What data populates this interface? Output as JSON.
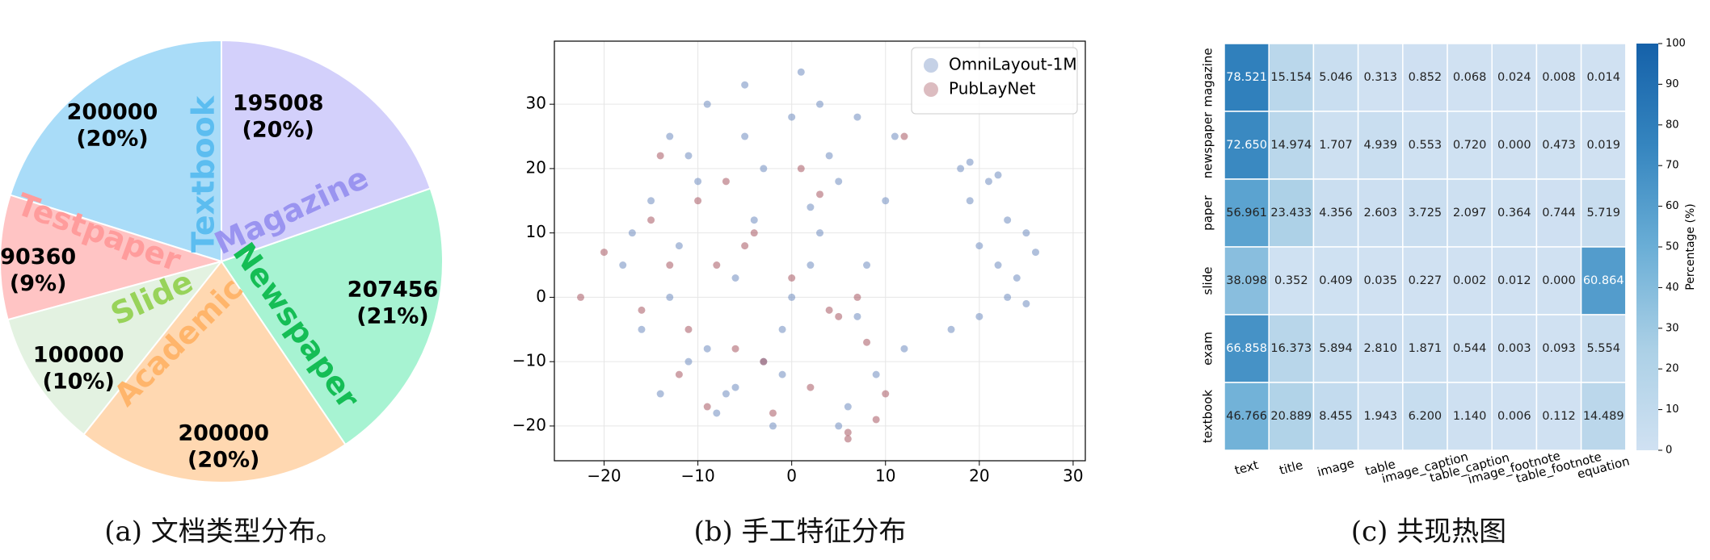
{
  "chart_data": [
    {
      "type": "pie",
      "caption": "(a) 文档类型分布。",
      "categories": [
        "Textbook",
        "Testpaper",
        "Slide",
        "Academic",
        "Newspaper",
        "Magazine"
      ],
      "values": [
        200000,
        90360,
        100000,
        200000,
        207456,
        195008
      ],
      "value_labels": [
        [
          "200000",
          "(20%)"
        ],
        [
          "90360",
          "(9%)"
        ],
        [
          "100000",
          "(10%)"
        ],
        [
          "200000",
          "(20%)"
        ],
        [
          "207456",
          "(21%)"
        ],
        [
          "195008",
          "(20%)"
        ]
      ],
      "colors": [
        "#a9dcf8",
        "#ffc4c4",
        "#e3f2e1",
        "#ffd8b1",
        "#a7f3d2",
        "#d3d0fb"
      ],
      "label_colors": [
        "#5cbdf0",
        "#ff9c9c",
        "#98d35a",
        "#ffb56b",
        "#15bd55",
        "#9a94f0"
      ]
    },
    {
      "type": "scatter",
      "caption": "(b) 手工特征分布",
      "xlim": [
        -25.3,
        31.3
      ],
      "ylim": [
        -25.4,
        39.8
      ],
      "xticks": [
        {
          "value": -20,
          "label": "−20"
        },
        {
          "value": -10,
          "label": "−10"
        },
        0,
        10,
        20,
        30
      ],
      "yticks": [
        {
          "value": -20,
          "label": "−20"
        },
        {
          "value": -10,
          "label": "−10"
        },
        0,
        10,
        20,
        30
      ],
      "grid": true,
      "legend": "upper right",
      "series": [
        {
          "name": "OmniLayout-1M",
          "color": "#6f8dc0",
          "x": [
            -18,
            -15,
            -13,
            -11,
            -9,
            -7,
            -5,
            -3,
            -1,
            1,
            3,
            5,
            7,
            9,
            11,
            -16,
            -12,
            -8,
            -4,
            0,
            4,
            8,
            12,
            -14,
            -10,
            -6,
            -2,
            2,
            6,
            10,
            -17,
            -13,
            -9,
            -5,
            -1,
            3,
            7,
            -11,
            -6,
            0,
            5,
            -3,
            2,
            18,
            19,
            21,
            23,
            20,
            22,
            24,
            25,
            26,
            19,
            22,
            25,
            17,
            20,
            23
          ],
          "values": [
            5,
            15,
            25,
            -10,
            30,
            -15,
            33,
            20,
            -5,
            35,
            10,
            -20,
            28,
            -12,
            25,
            -5,
            8,
            -18,
            12,
            0,
            22,
            5,
            -8,
            -15,
            18,
            3,
            -20,
            14,
            -17,
            15,
            10,
            0,
            -8,
            25,
            -12,
            30,
            -3,
            22,
            -14,
            28,
            18,
            -10,
            5,
            20,
            15,
            18,
            12,
            8,
            5,
            3,
            -1,
            7,
            21,
            19,
            10,
            -5,
            -3,
            0
          ]
        },
        {
          "name": "PubLayNet",
          "color": "#a85862",
          "x": [
            -22.5,
            -20,
            -16,
            -14,
            -12,
            -10,
            -8,
            -6,
            -4,
            -2,
            0,
            2,
            4,
            6,
            8,
            10,
            12,
            -15,
            -11,
            -7,
            -3,
            1,
            5,
            9,
            -13,
            -9,
            -5,
            3,
            7,
            6
          ],
          "values": [
            0,
            7,
            -2,
            22,
            -12,
            15,
            5,
            -8,
            10,
            -18,
            3,
            -14,
            -2,
            -21,
            -7,
            -15,
            25,
            12,
            -5,
            18,
            -10,
            20,
            -3,
            -19,
            5,
            -17,
            8,
            16,
            0,
            -22
          ]
        }
      ]
    },
    {
      "type": "heatmap",
      "caption": "(c) 共现热图",
      "x_categories": [
        "text",
        "title",
        "image",
        "table",
        "image_caption",
        "table_caption",
        "image_footnote",
        "table_footnote",
        "equation"
      ],
      "y_categories": [
        "magazine",
        "newspaper",
        "paper",
        "slide",
        "exam",
        "textbook"
      ],
      "values": [
        [
          78.521,
          15.154,
          5.046,
          0.313,
          0.852,
          0.068,
          0.024,
          0.008,
          0.014
        ],
        [
          72.65,
          14.974,
          1.707,
          4.939,
          0.553,
          0.72,
          0,
          0.473,
          0.019
        ],
        [
          56.961,
          23.433,
          4.356,
          2.603,
          3.725,
          2.097,
          0.364,
          0.744,
          5.719
        ],
        [
          38.098,
          0.352,
          0.409,
          0.035,
          0.227,
          0.002,
          0.012,
          0,
          60.864
        ],
        [
          66.858,
          16.373,
          5.894,
          2.81,
          1.871,
          0.544,
          0.003,
          0.093,
          5.554
        ],
        [
          46.766,
          20.889,
          8.455,
          1.943,
          6.2,
          1.14,
          0.006,
          0.112,
          14.489
        ]
      ],
      "value_labels": [
        [
          "78.521",
          "15.154",
          "5.046",
          "0.313",
          "0.852",
          "0.068",
          "0.024",
          "0.008",
          "0.014"
        ],
        [
          "72.650",
          "14.974",
          "1.707",
          "4.939",
          "0.553",
          "0.720",
          "0.000",
          "0.473",
          "0.019"
        ],
        [
          "56.961",
          "23.433",
          "4.356",
          "2.603",
          "3.725",
          "2.097",
          "0.364",
          "0.744",
          "5.719"
        ],
        [
          "38.098",
          "0.352",
          "0.409",
          "0.035",
          "0.227",
          "0.002",
          "0.012",
          "0.000",
          "60.864"
        ],
        [
          "66.858",
          "16.373",
          "5.894",
          "2.810",
          "1.871",
          "0.544",
          "0.003",
          "0.093",
          "5.554"
        ],
        [
          "46.766",
          "20.889",
          "8.455",
          "1.943",
          "6.200",
          "1.140",
          "0.006",
          "0.112",
          "14.489"
        ]
      ],
      "colormap": [
        "#d0e1f2",
        "#abd0e6",
        "#6aaed6",
        "#3585bf",
        "#1561a9"
      ],
      "colorbar_label": "Percentage (%)",
      "colorbar_lim": [
        0,
        100
      ],
      "colorbar_ticks": [
        0,
        10,
        20,
        30,
        40,
        50,
        60,
        70,
        80,
        90,
        100
      ]
    }
  ]
}
